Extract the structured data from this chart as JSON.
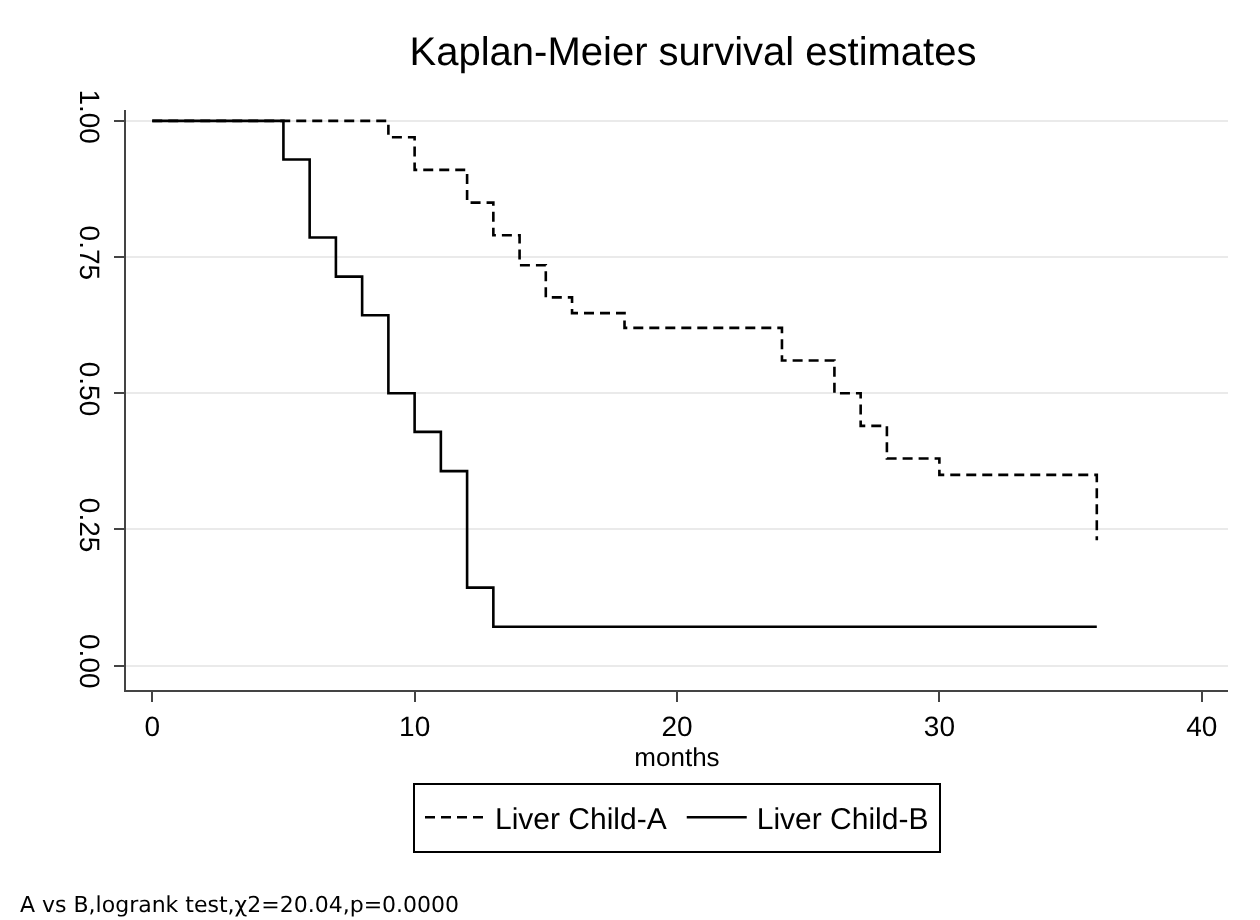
{
  "chart_data": {
    "type": "step",
    "title": "Kaplan-Meier survival estimates",
    "xlabel": "months",
    "series": [
      {
        "name": "Liver Child-A",
        "color": "#000000",
        "line_style": "dashed",
        "x": [
          0,
          9,
          10,
          12,
          13,
          14,
          15,
          16,
          18,
          24,
          26,
          27,
          28,
          30,
          36,
          36
        ],
        "values": [
          1.0,
          0.97,
          0.91,
          0.85,
          0.79,
          0.735,
          0.676,
          0.647,
          0.62,
          0.56,
          0.5,
          0.44,
          0.38,
          0.35,
          0.35,
          0.23
        ]
      },
      {
        "name": "Liver Child-B",
        "color": "#000000",
        "line_style": "solid",
        "x": [
          0,
          5,
          6,
          7,
          8,
          9,
          10,
          11,
          12,
          13,
          36
        ],
        "values": [
          1.0,
          0.929,
          0.786,
          0.714,
          0.643,
          0.5,
          0.429,
          0.357,
          0.143,
          0.071,
          0.071
        ]
      }
    ],
    "xlim": [
      -1,
      41
    ],
    "xticks": [
      0,
      10,
      20,
      30,
      40
    ],
    "ylim": [
      -0.045,
      1.02
    ],
    "yticks": [
      {
        "value": 1,
        "label": "1.00"
      },
      {
        "value": 0.75,
        "label": "0.75"
      },
      {
        "value": 0.5,
        "label": "0.50"
      },
      {
        "value": 0.25,
        "label": "0.25"
      },
      {
        "value": 0,
        "label": "0.00"
      }
    ],
    "grid": "y",
    "legend": "bottom",
    "marker": "none",
    "annotations": [
      "A vs B,logrank test,χ2=20.04,p=0.0000"
    ]
  }
}
